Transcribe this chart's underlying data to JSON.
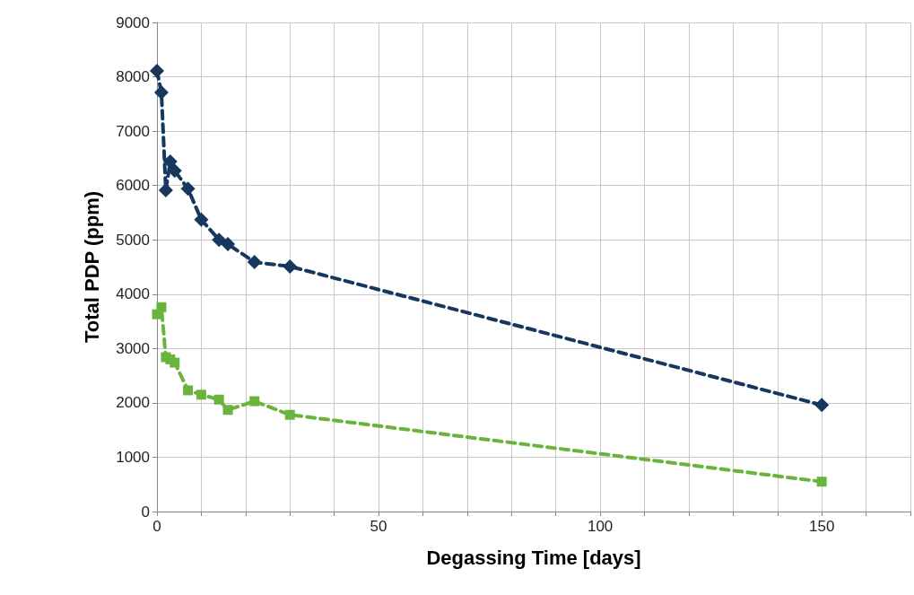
{
  "chart_data": {
    "type": "line",
    "xlabel": "Degassing Time [days]",
    "ylabel": "Total PDP (ppm)",
    "xlim": [
      0,
      170
    ],
    "xticks": [
      0,
      {
        "value": 10,
        "label": null
      },
      {
        "value": 20,
        "label": null
      },
      {
        "value": 30,
        "label": null
      },
      {
        "value": 40,
        "label": null
      },
      50,
      {
        "value": 60,
        "label": null
      },
      {
        "value": 70,
        "label": null
      },
      {
        "value": 80,
        "label": null
      },
      {
        "value": 90,
        "label": null
      },
      100,
      {
        "value": 110,
        "label": null
      },
      {
        "value": 120,
        "label": null
      },
      {
        "value": 130,
        "label": null
      },
      {
        "value": 140,
        "label": null
      },
      150,
      {
        "value": 160,
        "label": null
      },
      {
        "value": 170,
        "label": null
      }
    ],
    "ylim": [
      0,
      9000
    ],
    "yticks": [
      0,
      1000,
      2000,
      3000,
      4000,
      5000,
      6000,
      7000,
      8000,
      9000
    ],
    "grid": true,
    "line_style": "dashed",
    "series": [
      {
        "color": "#17375e",
        "marker": "diamond",
        "x": [
          0,
          1,
          2,
          3,
          4,
          7,
          10,
          14,
          16,
          22,
          30,
          150
        ],
        "values": [
          8110,
          7710,
          5910,
          6440,
          6270,
          5940,
          5370,
          5000,
          4920,
          4590,
          4510,
          1960
        ]
      },
      {
        "color": "#6ab43e",
        "marker": "square",
        "x": [
          0,
          1,
          2,
          3,
          4,
          7,
          10,
          14,
          16,
          22,
          30,
          150
        ],
        "values": [
          3630,
          3760,
          2840,
          2800,
          2740,
          2230,
          2150,
          2060,
          1870,
          2030,
          1780,
          550
        ]
      }
    ]
  }
}
